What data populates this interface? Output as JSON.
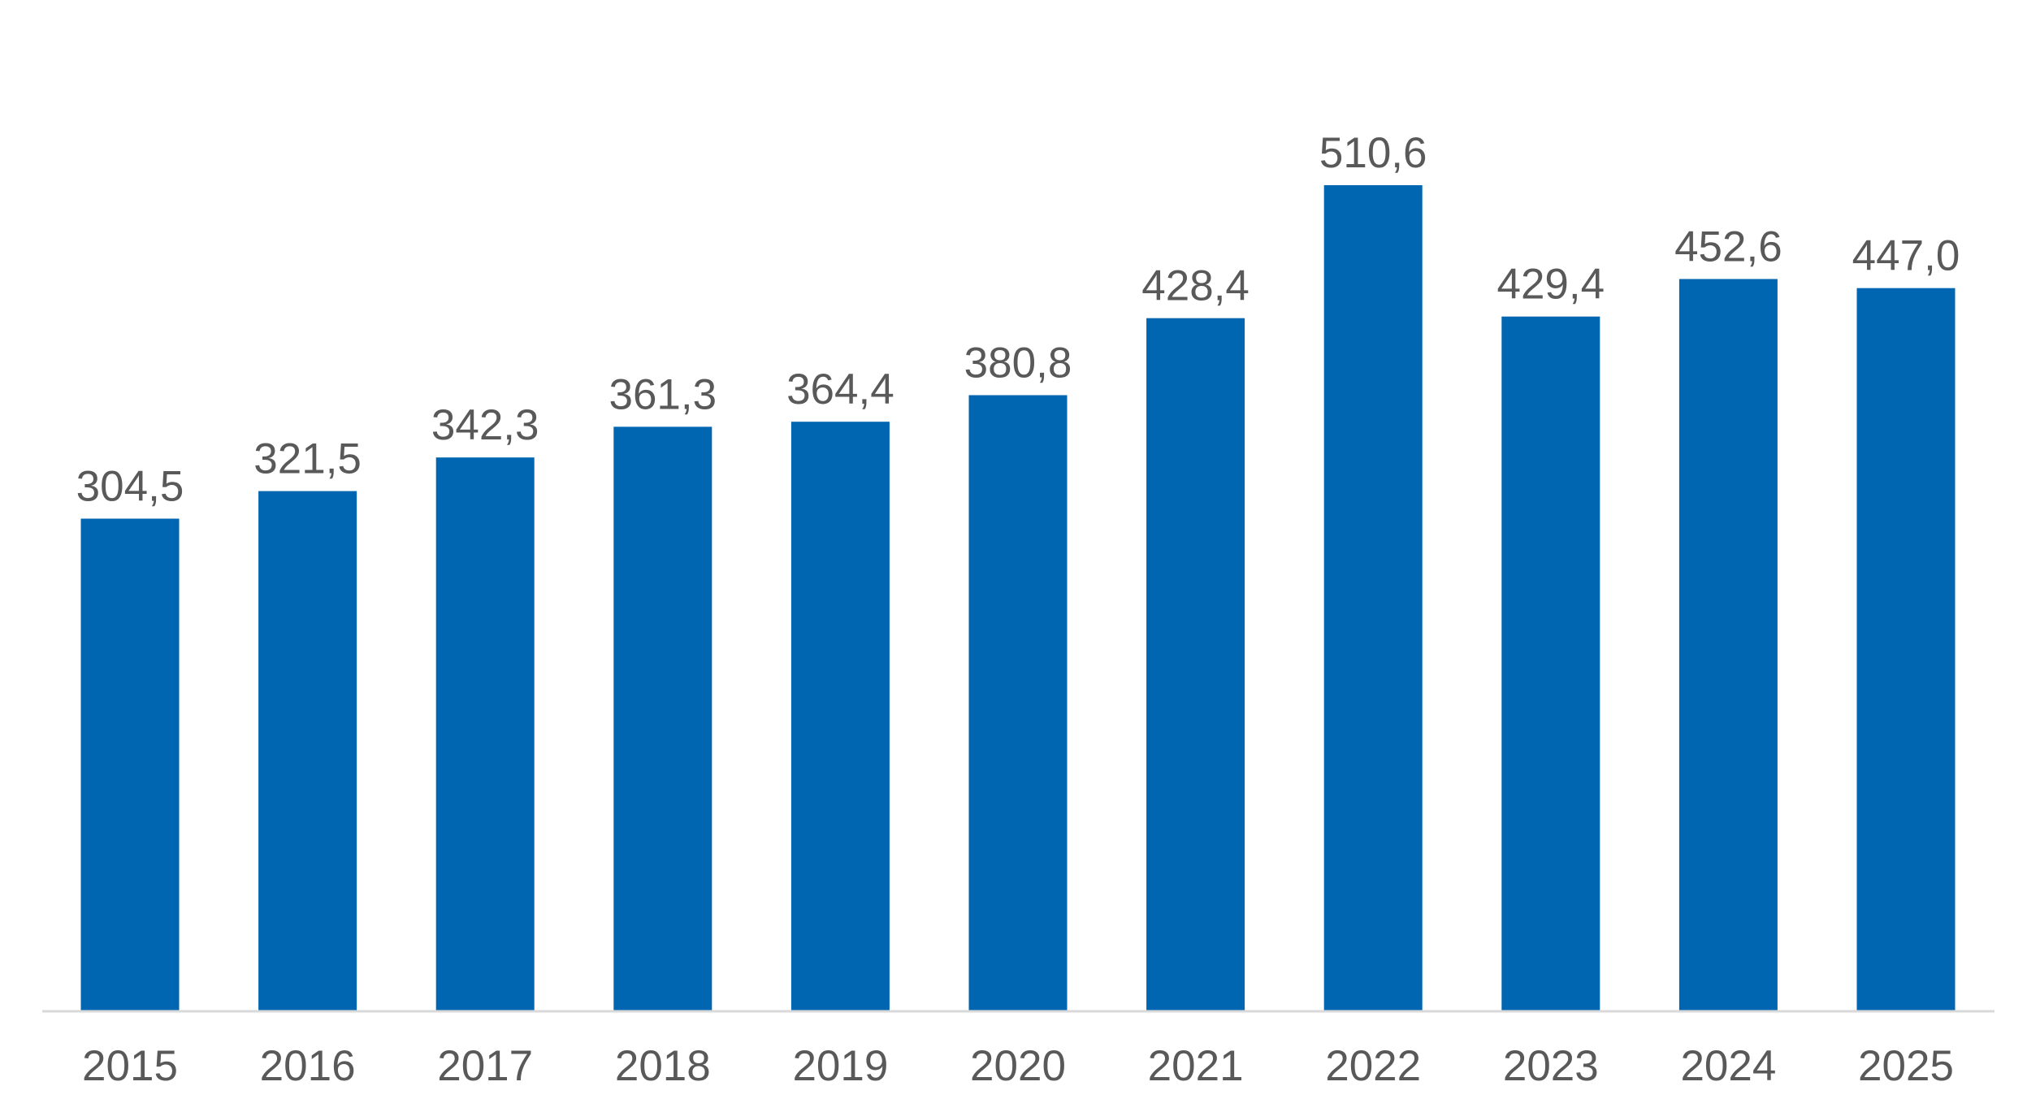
{
  "chart_data": {
    "type": "bar",
    "title": "",
    "xlabel": "",
    "ylabel": "",
    "categories": [
      "2015",
      "2016",
      "2017",
      "2018",
      "2019",
      "2020",
      "2021",
      "2022",
      "2023",
      "2024",
      "2025"
    ],
    "values": [
      304.5,
      321.5,
      342.3,
      361.3,
      364.4,
      380.8,
      428.4,
      510.6,
      429.4,
      452.6,
      447.0
    ],
    "value_labels": [
      "304,5",
      "321,5",
      "342,3",
      "361,3",
      "364,4",
      "380,8",
      "428,4",
      "510,6",
      "429,4",
      "452,6",
      "447,0"
    ],
    "ylim": [
      0,
      510.6
    ],
    "grid": false,
    "legend": "none",
    "colors": {
      "bar": "#0066b2",
      "text": "#595959",
      "axis": "#d9d9d9"
    }
  }
}
